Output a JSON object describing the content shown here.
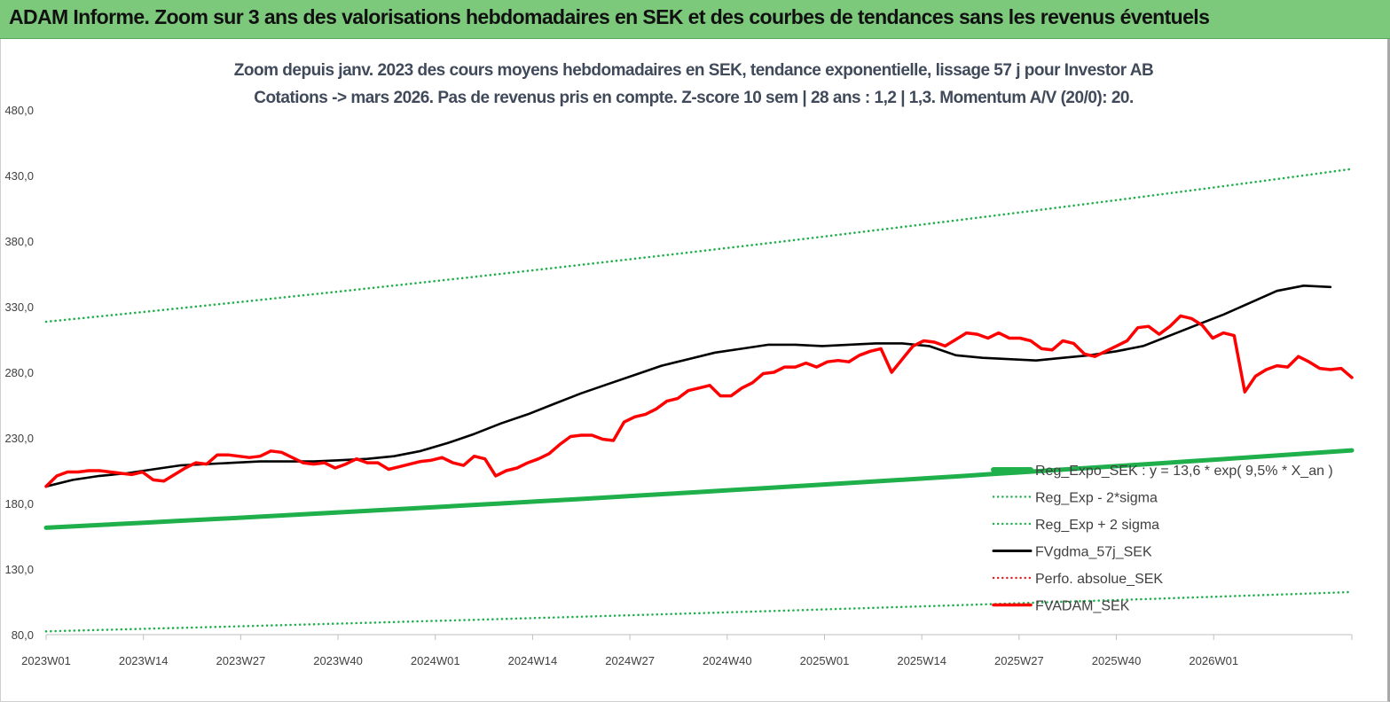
{
  "banner": {
    "title": "ADAM Informe. Zoom sur 3 ans des valorisations hebdomadaires en SEK et des courbes de tendances sans les revenus éventuels",
    "background": "#7dc97c"
  },
  "chart_data": {
    "type": "line",
    "title_line1": "Zoom depuis janv. 2023 des cours moyens hebdomadaires en SEK, tendance exponentielle, lissage 57 j pour Investor AB",
    "title_line2": "Cotations -> mars 2026. Pas de revenus pris en compte. Z-score 10 sem  | 28 ans : 1,2 | 1,3. Momentum A/V (20/0): 20.",
    "xlabel": "",
    "ylabel": "",
    "ylim": [
      80,
      480
    ],
    "yticks": [
      "480,0",
      "430,0",
      "380,0",
      "330,0",
      "280,0",
      "230,0",
      "180,0",
      "130,0",
      "80,0"
    ],
    "ytick_values": [
      480,
      430,
      380,
      330,
      280,
      230,
      180,
      130,
      80
    ],
    "xticks": [
      "2023W01",
      "2023W14",
      "2023W27",
      "2023W40",
      "2024W01",
      "2024W14",
      "2024W27",
      "2024W40",
      "2025W01",
      "2025W14",
      "2025W27",
      "2025W40",
      "2026W01"
    ],
    "n_weeks": 169,
    "grid": false,
    "legend_position": "bottom-right",
    "series": [
      {
        "name": "Reg_Expo_SEK : y = 13,6 * exp( 9,5% *  X_an )",
        "style": "solid-thick",
        "color": "#1faf4b",
        "start": 161.5,
        "end": 220.5
      },
      {
        "name": "Reg_Exp - 2*sigma",
        "style": "dotted",
        "color": "#1faf4b",
        "start": 82.5,
        "end": 112.5
      },
      {
        "name": "Reg_Exp + 2 sigma",
        "style": "dotted",
        "color": "#1faf4b",
        "start": 318.5,
        "end": 435.0
      },
      {
        "name": "FVgdma_57j_SEK",
        "style": "solid",
        "color": "#000000",
        "points": [
          [
            0,
            193
          ],
          [
            5,
            198
          ],
          [
            10,
            201
          ],
          [
            15,
            203
          ],
          [
            20,
            206
          ],
          [
            25,
            209
          ],
          [
            30,
            210
          ],
          [
            35,
            211
          ],
          [
            40,
            212
          ],
          [
            45,
            212
          ],
          [
            50,
            212
          ],
          [
            55,
            213
          ],
          [
            60,
            214
          ],
          [
            65,
            216
          ],
          [
            70,
            220
          ],
          [
            75,
            226
          ],
          [
            80,
            233
          ],
          [
            85,
            241
          ],
          [
            90,
            248
          ],
          [
            95,
            256
          ],
          [
            100,
            264
          ],
          [
            105,
            271
          ],
          [
            110,
            278
          ],
          [
            115,
            285
          ],
          [
            120,
            290
          ],
          [
            125,
            295
          ],
          [
            130,
            298
          ],
          [
            135,
            301
          ],
          [
            140,
            301
          ],
          [
            145,
            300
          ],
          [
            150,
            301
          ],
          [
            155,
            302
          ],
          [
            160,
            302
          ],
          [
            165,
            300
          ],
          [
            170,
            293
          ],
          [
            175,
            291
          ],
          [
            180,
            290
          ],
          [
            185,
            289
          ],
          [
            190,
            291
          ],
          [
            195,
            293
          ],
          [
            200,
            296
          ],
          [
            205,
            300
          ],
          [
            210,
            308
          ],
          [
            215,
            316
          ],
          [
            220,
            324
          ],
          [
            225,
            333
          ],
          [
            230,
            342
          ],
          [
            235,
            346
          ],
          [
            240,
            345
          ]
        ]
      },
      {
        "name": "Perfo. absolue_SEK",
        "style": "dotted",
        "color": "#e02020",
        "points": []
      },
      {
        "name": "FVADAM_SEK",
        "style": "solid-thick",
        "color": "#ff0000",
        "points": [
          [
            0,
            193
          ],
          [
            2,
            201
          ],
          [
            4,
            204
          ],
          [
            6,
            204
          ],
          [
            8,
            205
          ],
          [
            10,
            205
          ],
          [
            12,
            204
          ],
          [
            14,
            203
          ],
          [
            16,
            202
          ],
          [
            18,
            204
          ],
          [
            20,
            198
          ],
          [
            22,
            197
          ],
          [
            24,
            202
          ],
          [
            26,
            207
          ],
          [
            28,
            211
          ],
          [
            30,
            210
          ],
          [
            32,
            217
          ],
          [
            34,
            217
          ],
          [
            36,
            216
          ],
          [
            38,
            215
          ],
          [
            40,
            216
          ],
          [
            42,
            220
          ],
          [
            44,
            219
          ],
          [
            46,
            215
          ],
          [
            48,
            211
          ],
          [
            50,
            210
          ],
          [
            52,
            211
          ],
          [
            54,
            207
          ],
          [
            56,
            210
          ],
          [
            58,
            214
          ],
          [
            60,
            211
          ],
          [
            62,
            211
          ],
          [
            64,
            206
          ],
          [
            66,
            208
          ],
          [
            68,
            210
          ],
          [
            70,
            212
          ],
          [
            72,
            213
          ],
          [
            74,
            215
          ],
          [
            76,
            211
          ],
          [
            78,
            209
          ],
          [
            80,
            216
          ],
          [
            82,
            214
          ],
          [
            84,
            201
          ],
          [
            86,
            205
          ],
          [
            88,
            207
          ],
          [
            90,
            211
          ],
          [
            92,
            214
          ],
          [
            94,
            218
          ],
          [
            96,
            225
          ],
          [
            98,
            231
          ],
          [
            100,
            232
          ],
          [
            102,
            232
          ],
          [
            104,
            229
          ],
          [
            106,
            228
          ],
          [
            108,
            242
          ],
          [
            110,
            246
          ],
          [
            112,
            248
          ],
          [
            114,
            252
          ],
          [
            116,
            258
          ],
          [
            118,
            260
          ],
          [
            120,
            266
          ],
          [
            122,
            268
          ],
          [
            124,
            270
          ],
          [
            126,
            262
          ],
          [
            128,
            262
          ],
          [
            130,
            268
          ],
          [
            132,
            272
          ],
          [
            134,
            279
          ],
          [
            136,
            280
          ],
          [
            138,
            284
          ],
          [
            140,
            284
          ],
          [
            142,
            287
          ],
          [
            144,
            284
          ],
          [
            146,
            288
          ],
          [
            148,
            289
          ],
          [
            150,
            288
          ],
          [
            152,
            293
          ],
          [
            154,
            296
          ],
          [
            156,
            298
          ],
          [
            158,
            280
          ],
          [
            160,
            290
          ],
          [
            162,
            300
          ],
          [
            164,
            304
          ],
          [
            166,
            303
          ],
          [
            168,
            300
          ],
          [
            170,
            305
          ],
          [
            172,
            310
          ],
          [
            174,
            309
          ],
          [
            176,
            306
          ],
          [
            178,
            310
          ],
          [
            180,
            306
          ],
          [
            182,
            306
          ],
          [
            184,
            304
          ],
          [
            186,
            298
          ],
          [
            188,
            297
          ],
          [
            190,
            304
          ],
          [
            192,
            302
          ],
          [
            194,
            294
          ],
          [
            196,
            292
          ],
          [
            198,
            296
          ],
          [
            200,
            300
          ],
          [
            202,
            304
          ],
          [
            204,
            314
          ],
          [
            206,
            315
          ],
          [
            208,
            309
          ],
          [
            210,
            315
          ],
          [
            212,
            323
          ],
          [
            214,
            321
          ],
          [
            216,
            316
          ],
          [
            218,
            306
          ],
          [
            220,
            310
          ],
          [
            222,
            308
          ],
          [
            224,
            265
          ],
          [
            226,
            277
          ],
          [
            228,
            282
          ],
          [
            230,
            285
          ],
          [
            232,
            284
          ],
          [
            234,
            292
          ],
          [
            236,
            288
          ],
          [
            238,
            283
          ],
          [
            240,
            282
          ],
          [
            242,
            283
          ],
          [
            244,
            276
          ]
        ]
      }
    ]
  },
  "legend": {
    "items": [
      "Reg_Expo_SEK : y = 13,6 * exp( 9,5% *  X_an )",
      "Reg_Exp - 2*sigma",
      "Reg_Exp + 2 sigma",
      "FVgdma_57j_SEK",
      "Perfo. absolue_SEK",
      "FVADAM_SEK"
    ]
  }
}
